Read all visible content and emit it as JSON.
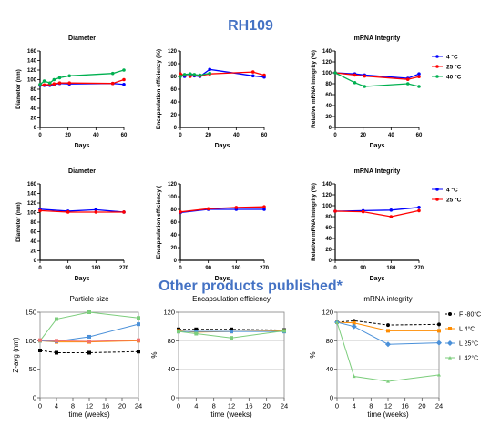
{
  "page": {
    "title": "RH109",
    "subtitle": "Other products published*"
  },
  "chart_data": [
    {
      "type": "line",
      "title": "Diameter",
      "xlabel": "Days",
      "ylabel": "Diameter (nm)",
      "xlim": [
        0,
        60
      ],
      "ylim": [
        0,
        160
      ],
      "xticks": [
        0,
        20,
        40,
        60
      ],
      "yticks": [
        0,
        20,
        40,
        60,
        80,
        100,
        120,
        140,
        160
      ],
      "series": [
        {
          "color": "#0000ff",
          "x": [
            0,
            3,
            7,
            10,
            14,
            21,
            52,
            60
          ],
          "y": [
            88,
            88,
            88,
            90,
            92,
            91,
            92,
            90
          ]
        },
        {
          "color": "#ff0000",
          "x": [
            0,
            3,
            7,
            10,
            14,
            21,
            52,
            60
          ],
          "y": [
            89,
            89,
            90,
            91,
            93,
            93,
            92,
            100
          ]
        },
        {
          "color": "#00b050",
          "x": [
            0,
            3,
            7,
            10,
            14,
            21,
            52,
            60
          ],
          "y": [
            90,
            97,
            93,
            100,
            104,
            108,
            113,
            120
          ]
        }
      ]
    },
    {
      "type": "line",
      "title": "",
      "xlabel": "Days",
      "ylabel": "Encapsulation efficiency (%)",
      "xlim": [
        0,
        60
      ],
      "ylim": [
        0,
        120
      ],
      "xticks": [
        0,
        20,
        40,
        60
      ],
      "yticks": [
        0,
        20,
        40,
        60,
        80,
        100,
        120
      ],
      "series": [
        {
          "color": "#0000ff",
          "x": [
            0,
            3,
            7,
            10,
            14,
            21,
            52,
            60
          ],
          "y": [
            82,
            80,
            82,
            81,
            80,
            91,
            81,
            79
          ]
        },
        {
          "color": "#ff0000",
          "x": [
            0,
            3,
            7,
            10,
            14,
            21,
            52,
            60
          ],
          "y": [
            84,
            82,
            80,
            82,
            81,
            84,
            87,
            82
          ]
        },
        {
          "color": "#00b050",
          "x": [
            0,
            3,
            7,
            10,
            14,
            21
          ],
          "y": [
            80,
            83,
            84,
            83,
            82,
            85
          ]
        }
      ]
    },
    {
      "type": "line",
      "title": "mRNA Integrity",
      "xlabel": "Days",
      "ylabel": "Relative mRNA integrity (%)",
      "xlim": [
        0,
        60
      ],
      "ylim": [
        0,
        140
      ],
      "xticks": [
        0,
        20,
        40,
        60
      ],
      "yticks": [
        0,
        20,
        40,
        60,
        80,
        100,
        120,
        140
      ],
      "legend_position": "right",
      "series": [
        {
          "name": "4 °C",
          "color": "#0000ff",
          "x": [
            0,
            14,
            21,
            52,
            60
          ],
          "y": [
            100,
            98,
            96,
            90,
            98
          ]
        },
        {
          "name": "25 °C",
          "color": "#ff0000",
          "x": [
            0,
            14,
            21,
            52,
            60
          ],
          "y": [
            100,
            96,
            94,
            88,
            93
          ]
        },
        {
          "name": "40 °C",
          "color": "#00b050",
          "x": [
            0,
            14,
            21,
            52,
            60
          ],
          "y": [
            100,
            82,
            75,
            80,
            75
          ]
        }
      ]
    },
    {
      "type": "line",
      "title": "Diameter",
      "xlabel": "Days",
      "ylabel": "Diameter (nm)",
      "xlim": [
        0,
        270
      ],
      "ylim": [
        0,
        160
      ],
      "xticks": [
        0,
        90,
        180,
        270
      ],
      "yticks": [
        0,
        20,
        40,
        60,
        80,
        100,
        120,
        140,
        160
      ],
      "series": [
        {
          "color": "#0000ff",
          "x": [
            0,
            90,
            180,
            270
          ],
          "y": [
            107,
            103,
            106,
            101
          ]
        },
        {
          "color": "#ff0000",
          "x": [
            0,
            90,
            180,
            270
          ],
          "y": [
            104,
            101,
            101,
            101
          ]
        }
      ]
    },
    {
      "type": "line",
      "title": "",
      "xlabel": "Days",
      "ylabel": "Encapsulation efficiency (",
      "xlim": [
        0,
        270
      ],
      "ylim": [
        0,
        120
      ],
      "xticks": [
        0,
        90,
        180,
        270
      ],
      "yticks": [
        0,
        20,
        40,
        60,
        80,
        100,
        120
      ],
      "series": [
        {
          "color": "#0000ff",
          "x": [
            0,
            90,
            180,
            270
          ],
          "y": [
            75,
            80,
            80,
            80
          ]
        },
        {
          "color": "#ff0000",
          "x": [
            0,
            90,
            180,
            270
          ],
          "y": [
            76,
            81,
            83,
            84
          ]
        }
      ]
    },
    {
      "type": "line",
      "title": "mRNA Integrity",
      "xlabel": "Days",
      "ylabel": "Relative mRNA integrity (%)",
      "xlim": [
        0,
        270
      ],
      "ylim": [
        0,
        140
      ],
      "xticks": [
        0,
        90,
        180,
        270
      ],
      "yticks": [
        0,
        20,
        40,
        60,
        80,
        100,
        120,
        140
      ],
      "legend_position": "right",
      "series": [
        {
          "name": "4 °C",
          "color": "#0000ff",
          "x": [
            0,
            90,
            180,
            270
          ],
          "y": [
            90,
            91,
            92,
            97
          ]
        },
        {
          "name": "25 °C",
          "color": "#ff0000",
          "x": [
            0,
            90,
            180,
            270
          ],
          "y": [
            90,
            89,
            80,
            91
          ]
        }
      ]
    },
    {
      "type": "line",
      "title": "Particle size",
      "xlabel": "time (weeks)",
      "ylabel": "Z-avg (nm)",
      "xlim": [
        0,
        24
      ],
      "ylim": [
        0,
        150
      ],
      "xticks": [
        0,
        4,
        8,
        12,
        16,
        20,
        24
      ],
      "yticks": [
        0,
        50,
        100,
        150
      ],
      "series": [
        {
          "color": "#000000",
          "x": [
            0,
            4,
            12,
            24
          ],
          "y": [
            83,
            79,
            79,
            81
          ],
          "dashed": true
        },
        {
          "color": "#ff8c00",
          "x": [
            0,
            4,
            12,
            24
          ],
          "y": [
            100,
            98,
            98,
            100
          ]
        },
        {
          "color": "#4a90d9",
          "x": [
            0,
            4,
            12,
            24
          ],
          "y": [
            100,
            99,
            107,
            129
          ]
        },
        {
          "color": "#7ccd7c",
          "x": [
            0,
            4,
            12,
            24
          ],
          "y": [
            100,
            138,
            150,
            140
          ]
        },
        {
          "color": "#f07070",
          "x": [
            0,
            4,
            12,
            24
          ],
          "y": [
            101,
            100,
            99,
            101
          ]
        }
      ]
    },
    {
      "type": "line",
      "title": "Encapsulation efficiency",
      "xlabel": "time (weeks)",
      "ylabel": "%",
      "xlim": [
        0,
        24
      ],
      "ylim": [
        0,
        120
      ],
      "xticks": [
        0,
        4,
        8,
        12,
        16,
        20,
        24
      ],
      "yticks": [
        0,
        40,
        80,
        120
      ],
      "series": [
        {
          "color": "#000000",
          "x": [
            0,
            4,
            12,
            24
          ],
          "y": [
            96,
            96,
            96,
            95
          ],
          "dashed": true
        },
        {
          "color": "#ff8c00",
          "x": [
            0,
            4,
            12,
            24
          ],
          "y": [
            94,
            92,
            93,
            94
          ]
        },
        {
          "color": "#4a90d9",
          "x": [
            0,
            4,
            12,
            24
          ],
          "y": [
            93,
            93,
            93,
            93
          ]
        },
        {
          "color": "#7ccd7c",
          "x": [
            0,
            4,
            12,
            24
          ],
          "y": [
            93,
            90,
            84,
            94
          ]
        }
      ]
    },
    {
      "type": "line",
      "title": "mRNA integrity",
      "xlabel": "time (weeks)",
      "ylabel": "%",
      "xlim": [
        0,
        24
      ],
      "ylim": [
        0,
        120
      ],
      "xticks": [
        0,
        4,
        8,
        12,
        16,
        20,
        24
      ],
      "yticks": [
        0,
        40,
        80,
        120
      ],
      "legend_position": "right",
      "series": [
        {
          "name": "F -80°C",
          "color": "#000000",
          "marker": "circle",
          "x": [
            0,
            4,
            12,
            24
          ],
          "y": [
            106,
            108,
            102,
            103
          ],
          "dashed": true
        },
        {
          "name": "L 4°C",
          "color": "#ff8c00",
          "marker": "square",
          "x": [
            0,
            4,
            12,
            24
          ],
          "y": [
            106,
            105,
            94,
            94
          ]
        },
        {
          "name": "L 25°C",
          "color": "#4a90d9",
          "marker": "diamond",
          "x": [
            0,
            4,
            12,
            24
          ],
          "y": [
            106,
            100,
            75,
            77
          ]
        },
        {
          "name": "L 42°C",
          "color": "#7ccd7c",
          "marker": "triangle",
          "x": [
            0,
            4,
            12,
            24
          ],
          "y": [
            106,
            30,
            23,
            32
          ]
        }
      ]
    }
  ]
}
